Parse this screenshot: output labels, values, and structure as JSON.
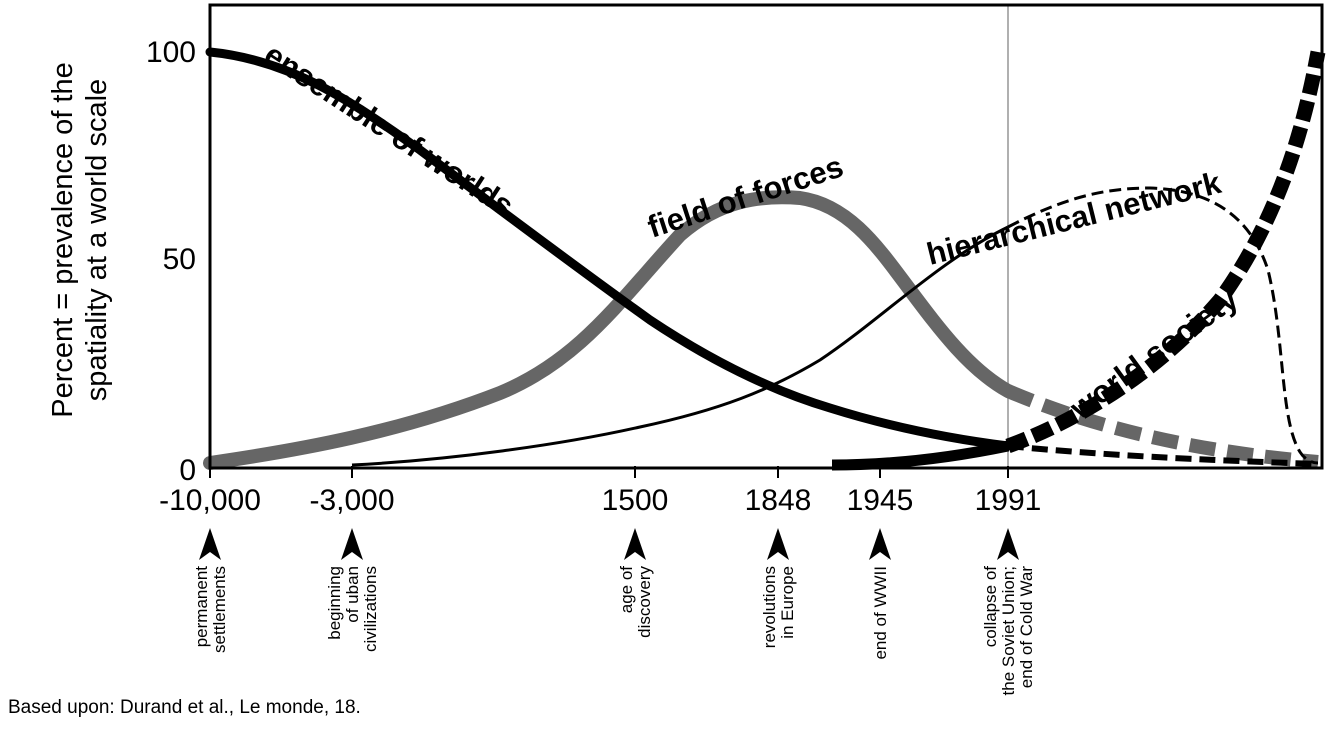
{
  "chart_data": {
    "type": "line",
    "title": "",
    "ylabel_lines": [
      "Percent = prevalence of the",
      "spatiality at a world scale"
    ],
    "xlabel": "",
    "ylim": [
      0,
      100
    ],
    "y_ticks": [
      0,
      50,
      100
    ],
    "x_ticks": [
      "-10,000",
      "-3,000",
      "1500",
      "1848",
      "1945",
      "1991"
    ],
    "grid": false,
    "reference_line_x": "1991",
    "events": [
      {
        "x": "-10,000",
        "lines": [
          "permanent",
          "settlements"
        ]
      },
      {
        "x": "-3,000",
        "lines": [
          "beginning",
          "of uban",
          "civilizations"
        ]
      },
      {
        "x": "1500",
        "lines": [
          "age of",
          "discovery"
        ]
      },
      {
        "x": "1848",
        "lines": [
          "revolutions",
          "in Europe"
        ]
      },
      {
        "x": "1945",
        "lines": [
          "end of WWII"
        ]
      },
      {
        "x": "1991",
        "lines": [
          "collapse of",
          "the Soviet Union;",
          "end of Cold War"
        ]
      }
    ],
    "series": [
      {
        "name": "ensemble of worlds",
        "color": "#000000",
        "style": "solid-thick",
        "points": [
          [
            "-10,000",
            100
          ],
          [
            "-8,000",
            95
          ],
          [
            "-6,000",
            86
          ],
          [
            "-4,000",
            74
          ],
          [
            "-2,000",
            62
          ],
          [
            "0",
            50
          ],
          [
            "1500",
            41
          ],
          [
            "1700",
            31
          ],
          [
            "1848",
            21
          ],
          [
            "1900",
            16
          ],
          [
            "1945",
            12
          ],
          [
            "1970",
            8
          ],
          [
            "1991",
            5
          ]
        ]
      },
      {
        "name": "field of forces",
        "color": "#666666",
        "style": "solid-thick",
        "points": [
          [
            "-10,000",
            2
          ],
          [
            "-6,000",
            4
          ],
          [
            "-3,000",
            7
          ],
          [
            "-1,000",
            14
          ],
          [
            "0",
            22
          ],
          [
            "1000",
            30
          ],
          [
            "1500",
            41
          ],
          [
            "1700",
            60
          ],
          [
            "1848",
            65
          ],
          [
            "1900",
            60
          ],
          [
            "1945",
            43
          ],
          [
            "1970",
            28
          ],
          [
            "1991",
            19
          ],
          [
            "future-a",
            12
          ],
          [
            "future-b",
            7
          ],
          [
            "future-c",
            2
          ]
        ]
      },
      {
        "name": "hierarchical network",
        "color": "#000000",
        "style": "solid-thin",
        "points": [
          [
            "-3,000",
            1
          ],
          [
            "0",
            4
          ],
          [
            "1500",
            10
          ],
          [
            "1848",
            21
          ],
          [
            "1945",
            38
          ],
          [
            "1991",
            58
          ],
          [
            "future-a",
            66
          ],
          [
            "future-b",
            60
          ],
          [
            "future-c",
            5
          ]
        ]
      },
      {
        "name": "world society",
        "color": "#000000",
        "style": "solid-thick",
        "points": [
          [
            "1900",
            1
          ],
          [
            "1945",
            1
          ],
          [
            "1991",
            4
          ],
          [
            "future-a",
            18
          ],
          [
            "future-b",
            45
          ],
          [
            "future-c",
            100
          ]
        ]
      }
    ]
  },
  "source_note": "Based upon: Durand et al., Le monde, 18."
}
